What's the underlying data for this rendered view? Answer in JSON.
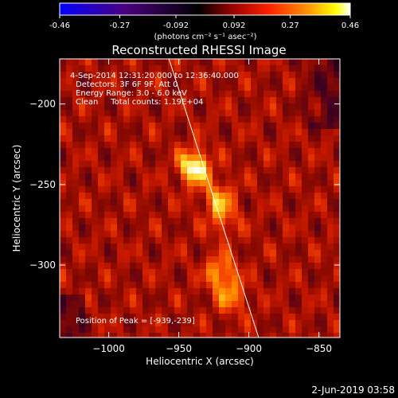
{
  "colorbar": {
    "ticks": [
      "-0.46",
      "-0.27",
      "-0.092",
      "0.092",
      "0.27",
      "0.46"
    ],
    "tick_values": [
      -0.46,
      -0.27,
      -0.092,
      0.092,
      0.27,
      0.46
    ],
    "range": [
      -0.46,
      0.46
    ],
    "units": "(photons cm⁻² s⁻¹ asec⁻²)",
    "colormap_stops": [
      "#0000ff",
      "#4b0082",
      "#000000",
      "#8b0000",
      "#ff2000",
      "#ff9a00",
      "#ffff00",
      "#ffffff"
    ]
  },
  "info": {
    "time": "4-Sep-2014 12:31:20.000 to 12:36:40.000",
    "detectors": "Detectors: 3F 6F 9F, Att 0",
    "energy": "Energy Range: 3.0 - 6.0 keV",
    "clean": "Clean     Total counts: 1.19E+04",
    "peak": "Position of Peak = [-939,-239]"
  },
  "footer": {
    "date": "2-Jun-2019 03:58"
  },
  "chart_data": {
    "type": "heatmap",
    "title": "Reconstructed RHESSI Image",
    "xlabel": "Heliocentric X (arcsec)",
    "ylabel": "Heliocentric Y (arcsec)",
    "xlim": [
      -1035,
      -835
    ],
    "ylim": [
      -345,
      -172
    ],
    "xticks": [
      -1000,
      -950,
      -900,
      -850
    ],
    "xtick_labels": [
      "−1000",
      "−950",
      "−900",
      "−850"
    ],
    "yticks": [
      -200,
      -250,
      -300
    ],
    "ytick_labels": [
      "−200",
      "−250",
      "−300"
    ],
    "peak": {
      "x": -939,
      "y": -239
    },
    "limb_line": [
      {
        "x": -957,
        "y": -172
      },
      {
        "x": -893,
        "y": -345
      }
    ],
    "sources": [
      {
        "x": -939,
        "y": -239,
        "intensity": 0.46
      },
      {
        "x": -922,
        "y": -258,
        "intensity": 0.25
      },
      {
        "x": -918,
        "y": -272,
        "intensity": 0.18
      },
      {
        "x": -920,
        "y": -305,
        "intensity": 0.3
      },
      {
        "x": -912,
        "y": -320,
        "intensity": 0.22
      }
    ],
    "grid": false
  }
}
